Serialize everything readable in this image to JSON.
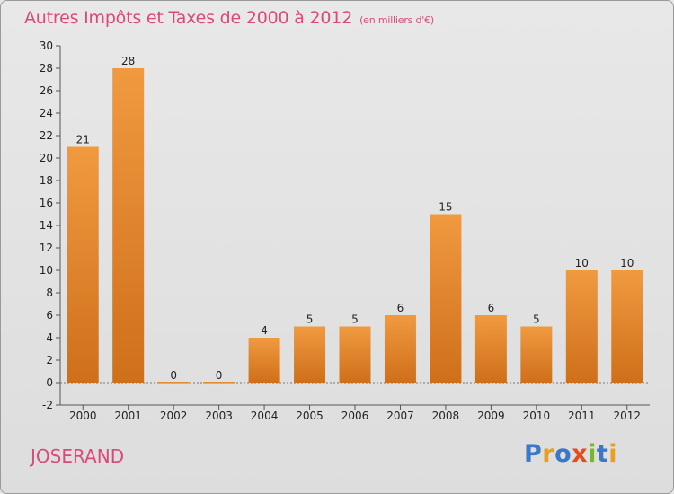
{
  "chart_data": {
    "type": "bar",
    "title": "Autres Impôts et Taxes de 2000 à 2012",
    "subtitle": "(en milliers d'€)",
    "categories": [
      "2000",
      "2001",
      "2002",
      "2003",
      "2004",
      "2005",
      "2006",
      "2007",
      "2008",
      "2009",
      "2010",
      "2011",
      "2012"
    ],
    "values": [
      21,
      28,
      0,
      0,
      4,
      5,
      5,
      6,
      15,
      6,
      5,
      10,
      10
    ],
    "ylim": [
      -2,
      30
    ],
    "yticks": [
      -2,
      0,
      2,
      4,
      6,
      8,
      10,
      12,
      14,
      16,
      18,
      20,
      22,
      24,
      26,
      28,
      30
    ],
    "grid": false,
    "bar_color": "#f09a40",
    "bar_color_dark": "#cf6f1a"
  },
  "footer": {
    "location": "JOSERAND",
    "brand_letters": [
      {
        "char": "P",
        "color": "#3a78c8"
      },
      {
        "char": "r",
        "color": "#e8a020"
      },
      {
        "char": "o",
        "color": "#3a78c8"
      },
      {
        "char": "x",
        "color": "#e84a1a"
      },
      {
        "char": "i",
        "color": "#78b828"
      },
      {
        "char": "t",
        "color": "#3a78c8"
      },
      {
        "char": "i",
        "color": "#e8a020"
      }
    ]
  },
  "colors": {
    "title": "#d94a7a",
    "axis": "#555555"
  }
}
